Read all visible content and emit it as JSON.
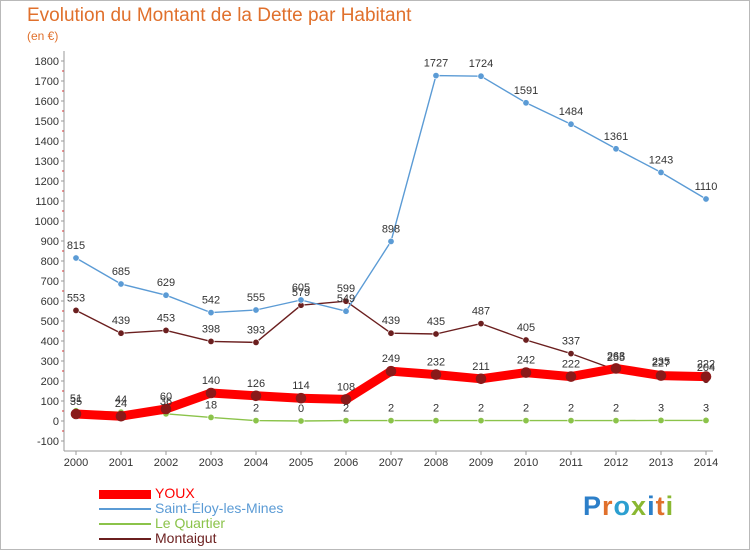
{
  "header": {
    "title": "Evolution du Montant de la Dette par Habitant",
    "unit": "(en €)"
  },
  "logo": {
    "text": "Proxiti",
    "colors": [
      "#2c7fc9",
      "#e0702c",
      "#2c9fd0",
      "#8ab832",
      "#2c7fc9",
      "#e0702c",
      "#8ab832"
    ]
  },
  "chart_data": {
    "type": "line",
    "title": "Evolution du Montant de la Dette par Habitant",
    "subtitle": "(en €)",
    "xlabel": "",
    "ylabel": "",
    "x": [
      "2000",
      "2001",
      "2002",
      "2003",
      "2004",
      "2005",
      "2006",
      "2007",
      "2008",
      "2009",
      "2010",
      "2011",
      "2012",
      "2013",
      "2014"
    ],
    "ylim": [
      -100,
      1800
    ],
    "yticks": [
      "-100",
      "0",
      "100",
      "200",
      "300",
      "400",
      "500",
      "600",
      "700",
      "800",
      "900",
      "1000",
      "1100",
      "1200",
      "1300",
      "1400",
      "1500",
      "1600",
      "1700",
      "1800"
    ],
    "grid": false,
    "legend_position": "bottom-left",
    "series": [
      {
        "name": "Montaigut",
        "color": "#6b1f1f",
        "values": [
          553,
          439,
          453,
          398,
          393,
          579,
          599,
          439,
          435,
          487,
          405,
          337,
          255,
          235,
          204
        ],
        "labels": [
          "553",
          "439",
          "453",
          "398",
          "393",
          "579",
          "599",
          "439",
          "435",
          "487",
          "405",
          "337",
          "255",
          "235",
          "204"
        ]
      },
      {
        "name": "Saint-Éloy-les-Mines",
        "color": "#5b9bd5",
        "values": [
          815,
          685,
          629,
          542,
          555,
          605,
          549,
          898,
          1727,
          1724,
          1591,
          1484,
          1361,
          1243,
          1110
        ],
        "labels": [
          "815",
          "685",
          "629",
          "542",
          "555",
          "605",
          "549",
          "898",
          "1727",
          "1724",
          "1591",
          "1484",
          "1361",
          "1243",
          "1110"
        ]
      },
      {
        "name": "Le Quartier",
        "color": "#8bc34a",
        "values": [
          51,
          44,
          36,
          18,
          2,
          0,
          2,
          2,
          2,
          2,
          2,
          2,
          2,
          3,
          3
        ],
        "labels": [
          "51",
          "44",
          "36",
          "18",
          "2",
          "0",
          "2",
          "2",
          "2",
          "2",
          "2",
          "2",
          "2",
          "3",
          "3"
        ]
      },
      {
        "name": "YOUX",
        "color": "#ff0000",
        "values": [
          35,
          24,
          60,
          140,
          126,
          114,
          108,
          249,
          232,
          211,
          242,
          222,
          263,
          227,
          222
        ],
        "labels": [
          "35",
          "24",
          "60",
          "140",
          "126",
          "114",
          "108",
          "249",
          "232",
          "211",
          "242",
          "222",
          "263",
          "227",
          "222"
        ]
      }
    ]
  },
  "legend": {
    "items": [
      {
        "label": "YOUX",
        "color": "#ff0000"
      },
      {
        "label": "Saint-Éloy-les-Mines",
        "color": "#5b9bd5"
      },
      {
        "label": "Le Quartier",
        "color": "#8bc34a"
      },
      {
        "label": "Montaigut",
        "color": "#6b1f1f"
      }
    ]
  }
}
